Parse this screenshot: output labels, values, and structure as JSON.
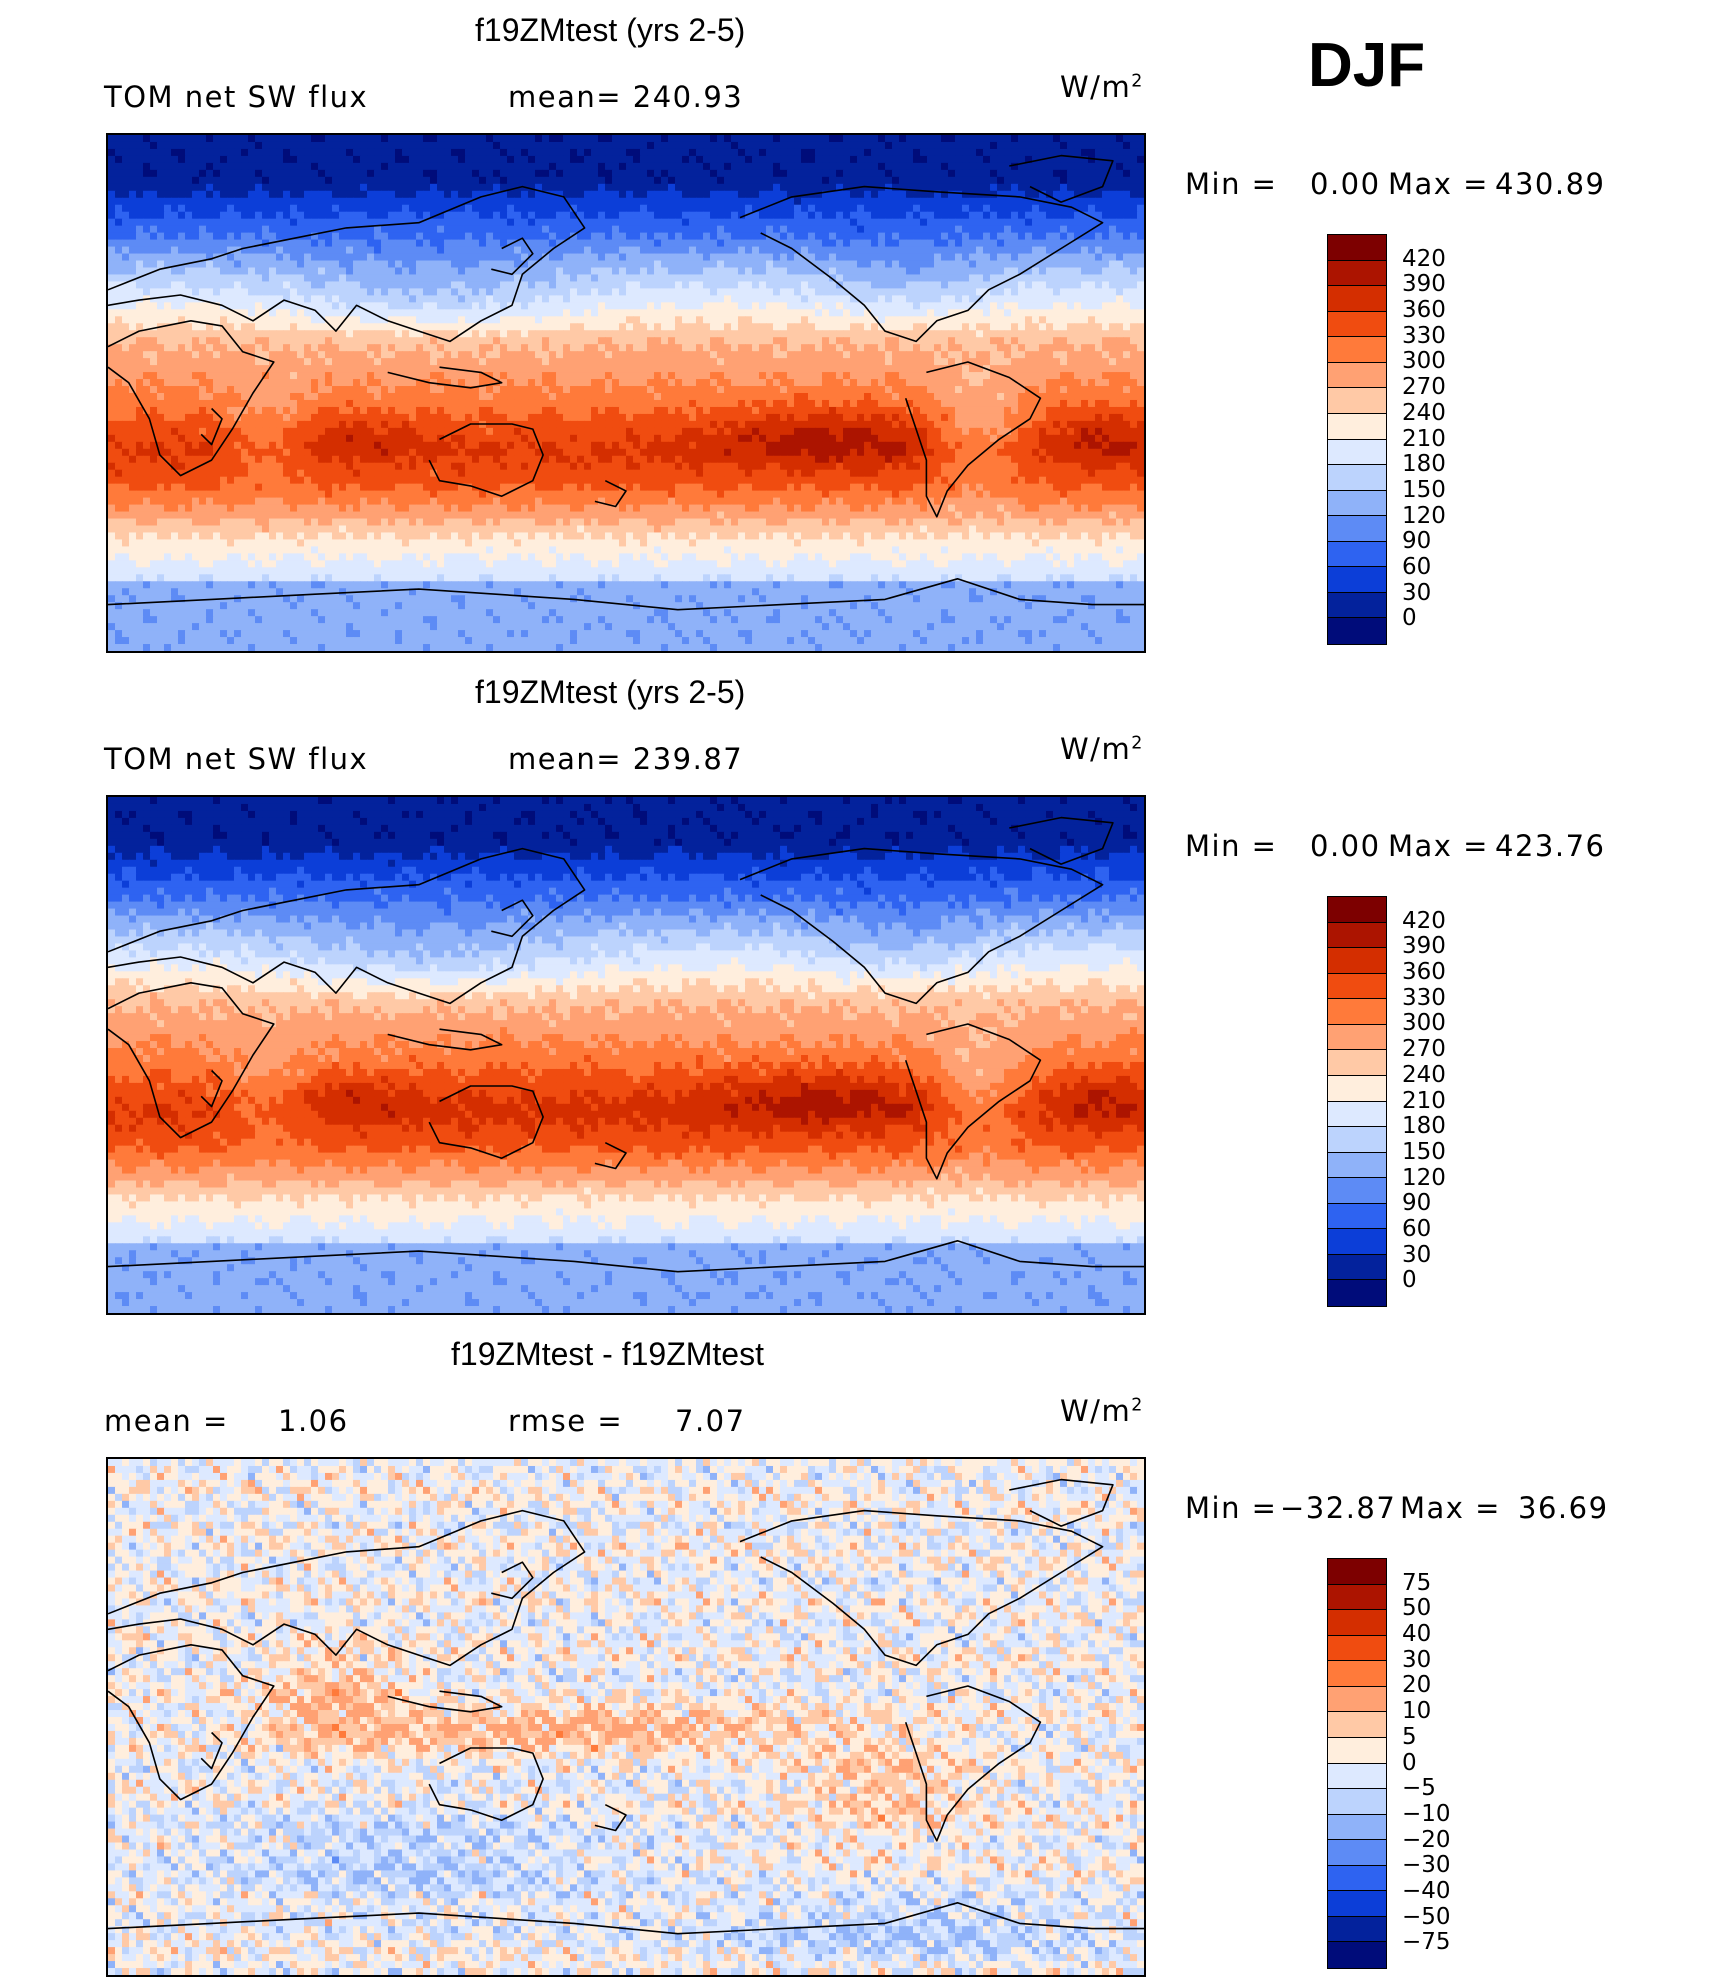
{
  "season": "DJF",
  "panels": [
    {
      "title": "f19ZMtest (yrs 2-5)",
      "left_label": "TOM net SW flux",
      "center_label": "mean= 240.93",
      "units": "W/m",
      "units_exp": "2",
      "min_label": "Min =",
      "min_value": "0.00",
      "max_label": "Max =",
      "max_value": "430.89",
      "field": "top"
    },
    {
      "title": "f19ZMtest (yrs 2-5)",
      "left_label": "TOM net SW flux",
      "center_label": "mean= 239.87",
      "units": "W/m",
      "units_exp": "2",
      "min_label": "Min =",
      "min_value": "0.00",
      "max_label": "Max =",
      "max_value": "423.76",
      "field": "mid"
    },
    {
      "title": "f19ZMtest - f19ZMtest",
      "left_label": "mean =",
      "left_value": "1.06",
      "center_label": "rmse =",
      "center_value": "7.07",
      "units": "W/m",
      "units_exp": "2",
      "min_label": "Min =",
      "min_value": "−32.87",
      "max_label": "Max =",
      "max_value": "36.69",
      "field": "diff"
    }
  ],
  "colorbars": {
    "flux": {
      "labels": [
        "420",
        "390",
        "360",
        "330",
        "300",
        "270",
        "240",
        "210",
        "180",
        "150",
        "120",
        "90",
        "60",
        "30",
        "0"
      ],
      "colors": [
        "#7d0000",
        "#ac1400",
        "#d42e00",
        "#f04c10",
        "#ff7a3a",
        "#ffa173",
        "#ffc9a6",
        "#ffeedd",
        "#dde9ff",
        "#bcd3fd",
        "#8fb2f9",
        "#5d8bf5",
        "#2e63f1",
        "#0c3ed8",
        "#03229c",
        "#000c7a"
      ]
    },
    "diff": {
      "labels": [
        "75",
        "50",
        "40",
        "30",
        "20",
        "10",
        "5",
        "0",
        "−5",
        "−10",
        "−20",
        "−30",
        "−40",
        "−50",
        "−75"
      ],
      "colors": [
        "#7d0000",
        "#ac1400",
        "#d42e00",
        "#f04c10",
        "#ff7a3a",
        "#ffa173",
        "#ffc9a6",
        "#ffeedd",
        "#dde9ff",
        "#bcd3fd",
        "#8fb2f9",
        "#5d8bf5",
        "#2e63f1",
        "#0c3ed8",
        "#03229c",
        "#000c7a"
      ]
    }
  },
  "chart_data": [
    {
      "type": "heatmap",
      "title": "f19ZMtest (yrs 2-5)",
      "variable": "TOM net SW flux",
      "season": "DJF",
      "units": "W/m2",
      "mean": 240.93,
      "min": 0.0,
      "max": 430.89,
      "contour_levels": [
        0,
        30,
        60,
        90,
        120,
        150,
        180,
        210,
        240,
        270,
        300,
        330,
        360,
        390,
        420
      ]
    },
    {
      "type": "heatmap",
      "title": "f19ZMtest (yrs 2-5)",
      "variable": "TOM net SW flux",
      "season": "DJF",
      "units": "W/m2",
      "mean": 239.87,
      "min": 0.0,
      "max": 423.76,
      "contour_levels": [
        0,
        30,
        60,
        90,
        120,
        150,
        180,
        210,
        240,
        270,
        300,
        330,
        360,
        390,
        420
      ]
    },
    {
      "type": "heatmap",
      "title": "f19ZMtest - f19ZMtest",
      "season": "DJF",
      "units": "W/m2",
      "mean": 1.06,
      "rmse": 7.07,
      "min": -32.87,
      "max": 36.69,
      "contour_levels": [
        -75,
        -50,
        -40,
        -30,
        -20,
        -10,
        -5,
        0,
        5,
        10,
        20,
        30,
        40,
        50,
        75
      ]
    }
  ]
}
